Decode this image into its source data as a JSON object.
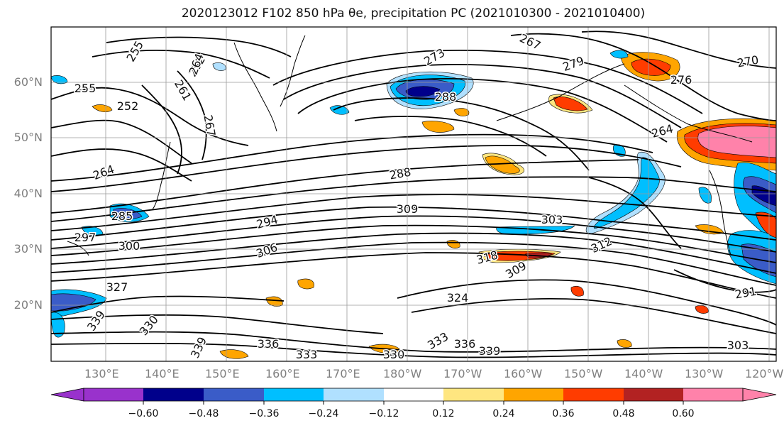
{
  "title": "2020123012 F102 850 hPa θe, precipitation PC (2021010300 - 2021010400)",
  "lat_labels": [
    "60°N",
    "50°N",
    "40°N",
    "30°N",
    "20°N"
  ],
  "lon_labels": [
    "130°E",
    "140°E",
    "150°E",
    "160°E",
    "170°E",
    "180°W",
    "170°W",
    "160°W",
    "150°W",
    "140°W",
    "130°W",
    "120°W"
  ],
  "contour_labels": [
    "255",
    "255",
    "252",
    "252",
    "267",
    "264",
    "261",
    "264",
    "267",
    "273",
    "270",
    "276",
    "279",
    "288",
    "288",
    "294",
    "309",
    "303",
    "306",
    "300",
    "297",
    "285",
    "312",
    "318",
    "309",
    "327",
    "324",
    "339",
    "330",
    "336",
    "339",
    "333",
    "330",
    "333",
    "336",
    "339",
    "303",
    "291",
    "264"
  ],
  "colorbar": {
    "colors": [
      "#9932cc",
      "#00008b",
      "#3a5cc8",
      "#00bfff",
      "#b0e0ff",
      "#ffffff",
      "#ffe680",
      "#ffa500",
      "#ff3c00",
      "#b22222",
      "#ff82aa",
      "#ff82aa"
    ],
    "tick_labels": [
      "−0.60",
      "−0.48",
      "−0.36",
      "−0.24",
      "−0.12",
      "0.12",
      "0.24",
      "0.36",
      "0.48",
      "0.60"
    ]
  }
}
